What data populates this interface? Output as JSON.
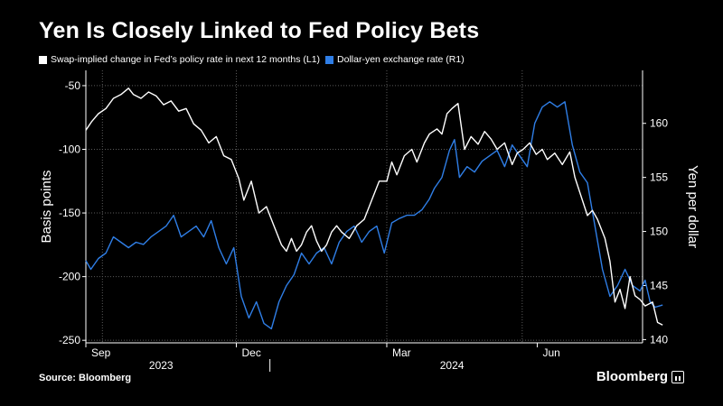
{
  "title": "Yen Is Closely Linked to Fed Policy Bets",
  "legend": {
    "series1": "Swap-implied change in Fed’s policy rate in next 12 months (L1)",
    "series2": "Dollar-yen exchange rate (R1)"
  },
  "source": "Source: Bloomberg",
  "brand": "Bloomberg",
  "colors": {
    "background": "#000000",
    "series1": "#ffffff",
    "series2": "#2f7ee6",
    "grid": "#5a5a5a"
  },
  "chart_data": {
    "type": "line",
    "title": "Yen Is Closely Linked to Fed Policy Bets",
    "x_range": [
      0,
      11.1
    ],
    "x_unit": "months since Sep 1, 2023",
    "month_ticks": [
      {
        "label": "Sep",
        "x": 0
      },
      {
        "label": "Dec",
        "x": 3.0
      },
      {
        "label": "Mar",
        "x": 6.0
      },
      {
        "label": "Jun",
        "x": 9.0
      }
    ],
    "year_labels": [
      {
        "label": "2023",
        "x": 1.5
      },
      {
        "label": "2024",
        "x": 7.3
      }
    ],
    "year_divider_x": 3.67,
    "grid_x": [
      0.33,
      3.0,
      6.0,
      8.7
    ],
    "left_axis": {
      "label": "Basis points",
      "range": [
        -252,
        -38
      ],
      "ticks": [
        -50,
        -100,
        -150,
        -200,
        -250
      ]
    },
    "right_axis": {
      "label": "Yen per dollar",
      "range": [
        139.7,
        164.9
      ],
      "ticks": [
        160,
        155,
        150,
        145,
        140
      ]
    },
    "grid_y_left": [
      -50,
      -100,
      -150,
      -200,
      -250
    ],
    "series": [
      {
        "name": "Swap-implied change in Fed’s policy rate in next 12 months (L1)",
        "axis": "left",
        "color": "#ffffff",
        "points": [
          [
            0.0,
            -85
          ],
          [
            0.12,
            -78
          ],
          [
            0.25,
            -72
          ],
          [
            0.4,
            -68
          ],
          [
            0.55,
            -60
          ],
          [
            0.7,
            -57
          ],
          [
            0.85,
            -52
          ],
          [
            0.95,
            -57
          ],
          [
            1.1,
            -60
          ],
          [
            1.25,
            -55
          ],
          [
            1.4,
            -58
          ],
          [
            1.55,
            -65
          ],
          [
            1.7,
            -62
          ],
          [
            1.85,
            -70
          ],
          [
            2.0,
            -68
          ],
          [
            2.15,
            -80
          ],
          [
            2.3,
            -85
          ],
          [
            2.45,
            -95
          ],
          [
            2.6,
            -90
          ],
          [
            2.75,
            -105
          ],
          [
            2.9,
            -108
          ],
          [
            3.05,
            -123
          ],
          [
            3.15,
            -140
          ],
          [
            3.3,
            -125
          ],
          [
            3.45,
            -150
          ],
          [
            3.6,
            -145
          ],
          [
            3.75,
            -160
          ],
          [
            3.9,
            -175
          ],
          [
            4.0,
            -180
          ],
          [
            4.1,
            -170
          ],
          [
            4.2,
            -180
          ],
          [
            4.3,
            -175
          ],
          [
            4.4,
            -165
          ],
          [
            4.5,
            -160
          ],
          [
            4.6,
            -172
          ],
          [
            4.7,
            -180
          ],
          [
            4.8,
            -175
          ],
          [
            4.9,
            -165
          ],
          [
            5.0,
            -160
          ],
          [
            5.1,
            -165
          ],
          [
            5.25,
            -170
          ],
          [
            5.4,
            -160
          ],
          [
            5.55,
            -155
          ],
          [
            5.7,
            -140
          ],
          [
            5.85,
            -125
          ],
          [
            6.0,
            -125
          ],
          [
            6.1,
            -110
          ],
          [
            6.2,
            -120
          ],
          [
            6.35,
            -105
          ],
          [
            6.5,
            -100
          ],
          [
            6.6,
            -110
          ],
          [
            6.75,
            -95
          ],
          [
            6.85,
            -88
          ],
          [
            7.0,
            -84
          ],
          [
            7.1,
            -88
          ],
          [
            7.2,
            -72
          ],
          [
            7.3,
            -68
          ],
          [
            7.42,
            -64
          ],
          [
            7.55,
            -100
          ],
          [
            7.68,
            -90
          ],
          [
            7.82,
            -96
          ],
          [
            7.95,
            -86
          ],
          [
            8.08,
            -92
          ],
          [
            8.2,
            -100
          ],
          [
            8.35,
            -95
          ],
          [
            8.5,
            -112
          ],
          [
            8.6,
            -103
          ],
          [
            8.72,
            -100
          ],
          [
            8.85,
            -95
          ],
          [
            8.98,
            -104
          ],
          [
            9.1,
            -100
          ],
          [
            9.2,
            -108
          ],
          [
            9.35,
            -103
          ],
          [
            9.5,
            -112
          ],
          [
            9.65,
            -102
          ],
          [
            9.75,
            -122
          ],
          [
            9.9,
            -140
          ],
          [
            10.0,
            -152
          ],
          [
            10.1,
            -148
          ],
          [
            10.2,
            -155
          ],
          [
            10.35,
            -170
          ],
          [
            10.45,
            -188
          ],
          [
            10.55,
            -220
          ],
          [
            10.65,
            -210
          ],
          [
            10.75,
            -225
          ],
          [
            10.85,
            -200
          ],
          [
            10.95,
            -215
          ],
          [
            11.05,
            -218
          ],
          [
            11.15,
            -223
          ],
          [
            11.3,
            -220
          ],
          [
            11.4,
            -236
          ],
          [
            11.5,
            -238
          ]
        ]
      },
      {
        "name": "Dollar-yen exchange rate (R1)",
        "axis": "right",
        "color": "#2f7ee6",
        "points": [
          [
            0.0,
            147.3
          ],
          [
            0.1,
            146.5
          ],
          [
            0.25,
            147.5
          ],
          [
            0.4,
            148.0
          ],
          [
            0.55,
            149.5
          ],
          [
            0.7,
            149.0
          ],
          [
            0.85,
            148.5
          ],
          [
            1.0,
            149.0
          ],
          [
            1.15,
            148.8
          ],
          [
            1.3,
            149.5
          ],
          [
            1.45,
            150.0
          ],
          [
            1.6,
            150.5
          ],
          [
            1.75,
            151.5
          ],
          [
            1.9,
            149.5
          ],
          [
            2.05,
            150.0
          ],
          [
            2.2,
            150.5
          ],
          [
            2.35,
            149.5
          ],
          [
            2.5,
            151.0
          ],
          [
            2.65,
            148.5
          ],
          [
            2.8,
            147.0
          ],
          [
            2.95,
            148.5
          ],
          [
            3.1,
            144.0
          ],
          [
            3.25,
            142.0
          ],
          [
            3.4,
            143.5
          ],
          [
            3.55,
            141.5
          ],
          [
            3.7,
            141.0
          ],
          [
            3.85,
            143.5
          ],
          [
            4.0,
            145.0
          ],
          [
            4.15,
            146.0
          ],
          [
            4.3,
            148.0
          ],
          [
            4.45,
            147.0
          ],
          [
            4.6,
            148.0
          ],
          [
            4.75,
            148.5
          ],
          [
            4.9,
            147.0
          ],
          [
            5.05,
            149.0
          ],
          [
            5.2,
            150.0
          ],
          [
            5.35,
            150.5
          ],
          [
            5.5,
            149.0
          ],
          [
            5.65,
            150.0
          ],
          [
            5.8,
            150.5
          ],
          [
            5.95,
            148.0
          ],
          [
            6.1,
            150.8
          ],
          [
            6.25,
            151.2
          ],
          [
            6.4,
            151.5
          ],
          [
            6.55,
            151.5
          ],
          [
            6.7,
            152.0
          ],
          [
            6.85,
            153.0
          ],
          [
            6.95,
            154.0
          ],
          [
            7.1,
            155.0
          ],
          [
            7.25,
            157.5
          ],
          [
            7.35,
            158.5
          ],
          [
            7.45,
            155.0
          ],
          [
            7.6,
            156.0
          ],
          [
            7.75,
            155.5
          ],
          [
            7.9,
            156.5
          ],
          [
            8.05,
            157.0
          ],
          [
            8.2,
            157.5
          ],
          [
            8.35,
            156.0
          ],
          [
            8.5,
            158.0
          ],
          [
            8.65,
            157.0
          ],
          [
            8.8,
            156.0
          ],
          [
            8.95,
            160.0
          ],
          [
            9.1,
            161.5
          ],
          [
            9.25,
            162.0
          ],
          [
            9.4,
            161.5
          ],
          [
            9.55,
            162.0
          ],
          [
            9.7,
            158.0
          ],
          [
            9.85,
            155.5
          ],
          [
            10.0,
            154.5
          ],
          [
            10.15,
            150.5
          ],
          [
            10.3,
            146.5
          ],
          [
            10.45,
            144.0
          ],
          [
            10.6,
            145.0
          ],
          [
            10.75,
            146.5
          ],
          [
            10.9,
            145.0
          ],
          [
            11.05,
            144.5
          ],
          [
            11.15,
            145.5
          ],
          [
            11.25,
            143.5
          ],
          [
            11.35,
            143.0
          ],
          [
            11.5,
            143.2
          ]
        ]
      }
    ]
  }
}
